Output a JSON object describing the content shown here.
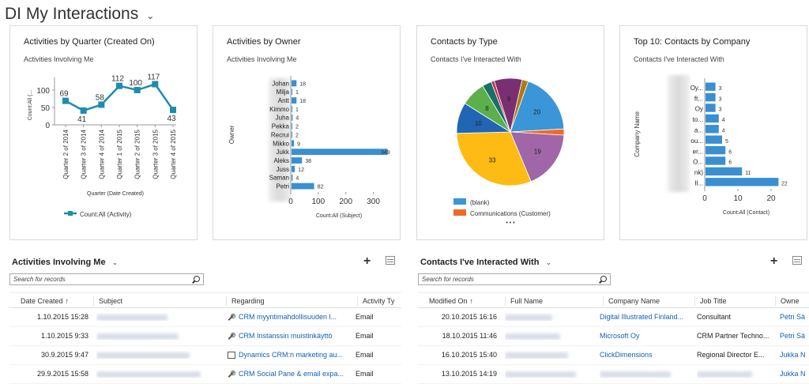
{
  "header": {
    "title": "DI My Interactions"
  },
  "charts": [
    {
      "title": "Activities by Quarter (Created On)",
      "subtitle": "Activities Involving Me"
    },
    {
      "title": "Activities by Owner",
      "subtitle": "Activities Involving Me"
    },
    {
      "title": "Contacts by Type",
      "subtitle": "Contacts I've Interacted With"
    },
    {
      "title": "Top 10: Contacts by Company",
      "subtitle": "Contacts I've Interacted With"
    }
  ],
  "chart_data": [
    {
      "type": "line",
      "title": "Activities by Quarter (Created On)",
      "xlabel": "Quarter (Date Created)",
      "ylabel": "Count:All (...",
      "categories": [
        "Quarter 2 of 2014",
        "Quarter 3 of 2014",
        "Quarter 4 of 2014",
        "Quarter 1 of 2015",
        "Quarter 2 of 2015",
        "Quarter 3 of 2015",
        "Quarter 4 of 2015"
      ],
      "series": [
        {
          "name": "Count:All (Activity)",
          "values": [
            69,
            41,
            58,
            112,
            100,
            117,
            43
          ]
        }
      ],
      "yticks": [
        "0",
        "50",
        "100"
      ],
      "ylim": [
        0,
        125
      ],
      "legend": "bottom",
      "color": "#1f8cad"
    },
    {
      "type": "bar",
      "orientation": "horizontal",
      "title": "Activities by Owner",
      "xlabel": "Count:All (Subject)",
      "ylabel": "Owner",
      "categories": [
        "Johan",
        "Milja",
        "Antt",
        "Kimmo",
        "Juha",
        "Pekka",
        "Recrui",
        "Mikko",
        "Jukk",
        "Aleks",
        "Juss",
        "Saman",
        "Petri"
      ],
      "values": [
        18,
        1,
        18,
        1,
        4,
        2,
        2,
        9,
        349,
        38,
        12,
        4,
        82
      ],
      "xticks": [
        "0",
        "100",
        "200",
        "300"
      ],
      "xlim": [
        0,
        350
      ],
      "color": "#3a8fd0"
    },
    {
      "type": "pie",
      "title": "Contacts by Type",
      "slices": [
        {
          "value": 20,
          "color": "#3a96d6"
        },
        {
          "value": 2,
          "color": "#f06a27"
        },
        {
          "value": 19,
          "color": "#a066a8"
        },
        {
          "value": 33,
          "color": "#fdbb13"
        },
        {
          "value": 10,
          "color": "#2166b5"
        },
        {
          "value": 8,
          "color": "#5bb04c"
        },
        {
          "value": 3,
          "color": "#1a6f6a"
        },
        {
          "value": 1,
          "color": "#c32f45"
        },
        {
          "value": 9,
          "color": "#7a2f72"
        },
        {
          "value": 2,
          "color": "#b07a10"
        }
      ],
      "legend": [
        "(blank)",
        "Communications (Customer)"
      ],
      "legend_more": "• • •",
      "legend_position": "bottom"
    },
    {
      "type": "bar",
      "orientation": "horizontal",
      "title": "Top 10: Contacts by Company",
      "xlabel": "Count:All (Contact)",
      "ylabel": "Company Name",
      "categories": [
        "Oy...",
        "ft...",
        "Oy",
        "to...",
        "a...",
        "ou...",
        "er...",
        "O...",
        "nk)",
        "Il..."
      ],
      "values": [
        3,
        3,
        3,
        4,
        4,
        5,
        6,
        6,
        11,
        22
      ],
      "xticks": [
        "0",
        "10",
        "20"
      ],
      "xlim": [
        0,
        25
      ],
      "color": "#3a8fd0"
    }
  ],
  "grids": [
    {
      "title": "Activities Involving Me",
      "search_placeholder": "Search for records",
      "columns": [
        "Date Created",
        "Subject",
        "Regarding",
        "Activity Ty"
      ],
      "sort_indicator": "↑",
      "rows": [
        {
          "date": "1.10.2015 15:28",
          "regarding": "CRM myyntimahdollisuuden l...",
          "icon": "wrench-icon",
          "type": "Email"
        },
        {
          "date": "1.10.2015 9:33",
          "regarding": "CRM Instanssin muistinkäyttö",
          "icon": "wrench-icon",
          "type": "Email"
        },
        {
          "date": "30.9.2015 9:47",
          "regarding": "Dynamics CRM:n marketing au...",
          "icon": "document-icon",
          "type": "Email"
        },
        {
          "date": "29.9.2015 15:58",
          "regarding": "CRM Social Pane & email expa...",
          "icon": "wrench-icon",
          "type": "Email"
        }
      ]
    },
    {
      "title": "Contacts I've Interacted With",
      "search_placeholder": "Search for records",
      "columns": [
        "Modified On",
        "Full Name",
        "Company Name",
        "Job Title",
        "Owne"
      ],
      "sort_indicator": "↑",
      "rows": [
        {
          "date": "20.10.2015 16:16",
          "company": "Digital Illustrated Finland...",
          "job": "Consultant",
          "owner": "Petri Sä"
        },
        {
          "date": "18.10.2015 11:46",
          "company": "Microsoft Oy",
          "job": "CRM Partner Techno...",
          "owner": "Petri Sä"
        },
        {
          "date": "16.10.2015 15:40",
          "company": "ClickDimensions",
          "job": "Regional Director E...",
          "owner": "Jukka N"
        },
        {
          "date": "13.10.2015 14:19",
          "company": "",
          "job": "",
          "owner": "Jukka N"
        }
      ]
    }
  ]
}
